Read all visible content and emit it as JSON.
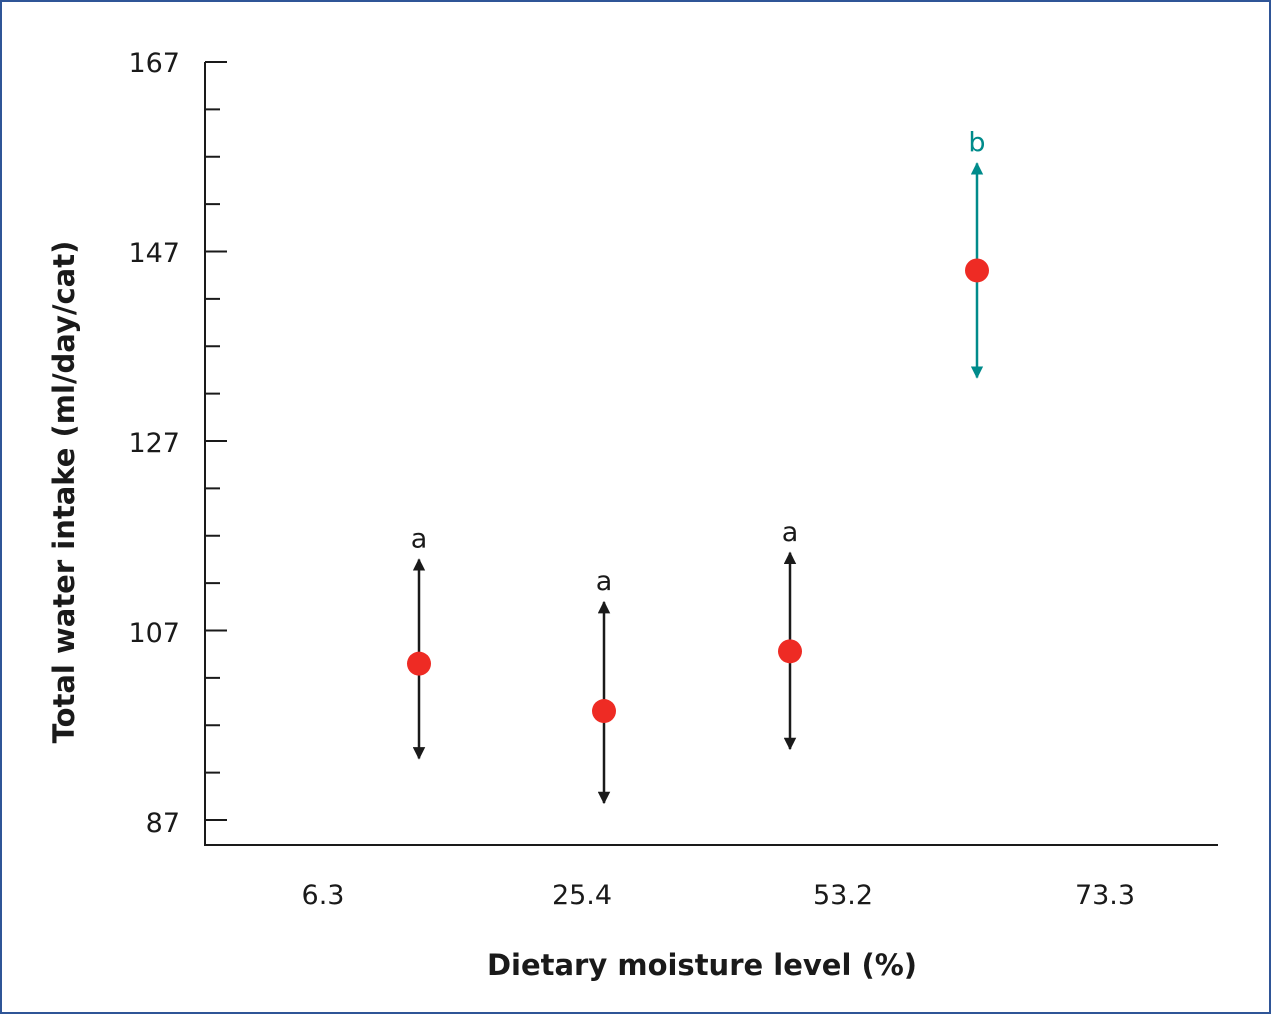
{
  "chart_data": {
    "type": "scatter",
    "title": "",
    "xlabel": "Dietary moisture level (%)",
    "ylabel": "Total water intake (ml/day/cat)",
    "x_tick_labels": [
      "6.3",
      "25.4",
      "53.2",
      "73.3"
    ],
    "y_tick_labels": [
      "167",
      "147",
      "127",
      "107",
      "87"
    ],
    "ylim": [
      87,
      167
    ],
    "y_major_ticks": [
      87,
      107,
      127,
      147,
      167
    ],
    "y_minor_step": 5,
    "grid": false,
    "series": [
      {
        "points": [
          {
            "mean": 103.5,
            "lower": 93.5,
            "upper": 114.5,
            "label": "a",
            "color": "#1a1a1a"
          },
          {
            "mean": 98.5,
            "lower": 88.8,
            "upper": 110.0,
            "label": "a",
            "color": "#1a1a1a"
          },
          {
            "mean": 104.8,
            "lower": 94.5,
            "upper": 115.2,
            "label": "a",
            "color": "#1a1a1a"
          },
          {
            "mean": 145.0,
            "lower": 133.7,
            "upper": 156.3,
            "label": "b",
            "color": "#008b8b"
          }
        ]
      }
    ],
    "marker_color": "#ee2b24",
    "frame_color": "#2f5597"
  }
}
